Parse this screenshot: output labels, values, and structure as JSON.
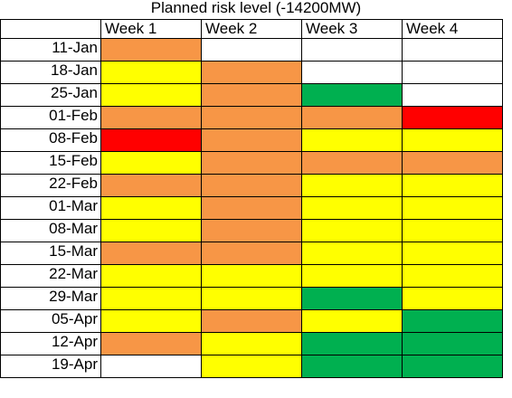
{
  "chart_data": {
    "type": "heatmap",
    "title": "Planned risk level (-14200MW)",
    "columns": [
      "Week 1",
      "Week 2",
      "Week 3",
      "Week 4"
    ],
    "rows": [
      "11-Jan",
      "18-Jan",
      "25-Jan",
      "01-Feb",
      "08-Feb",
      "15-Feb",
      "22-Feb",
      "01-Mar",
      "08-Mar",
      "15-Mar",
      "22-Mar",
      "29-Mar",
      "05-Apr",
      "12-Apr",
      "19-Apr"
    ],
    "levels": {
      "none": "#ffffff",
      "green": "#00b050",
      "yellow": "#ffff00",
      "orange": "#f79646",
      "red": "#ff0000"
    },
    "cells": [
      [
        "orange",
        "none",
        "none",
        "none"
      ],
      [
        "yellow",
        "orange",
        "none",
        "none"
      ],
      [
        "yellow",
        "orange",
        "green",
        "none"
      ],
      [
        "orange",
        "orange",
        "orange",
        "red"
      ],
      [
        "red",
        "orange",
        "yellow",
        "yellow"
      ],
      [
        "yellow",
        "orange",
        "orange",
        "orange"
      ],
      [
        "orange",
        "orange",
        "yellow",
        "yellow"
      ],
      [
        "yellow",
        "orange",
        "yellow",
        "yellow"
      ],
      [
        "yellow",
        "orange",
        "yellow",
        "yellow"
      ],
      [
        "orange",
        "orange",
        "yellow",
        "yellow"
      ],
      [
        "yellow",
        "yellow",
        "yellow",
        "yellow"
      ],
      [
        "yellow",
        "yellow",
        "green",
        "yellow"
      ],
      [
        "yellow",
        "orange",
        "yellow",
        "green"
      ],
      [
        "orange",
        "yellow",
        "green",
        "green"
      ],
      [
        "none",
        "yellow",
        "green",
        "green"
      ]
    ]
  }
}
